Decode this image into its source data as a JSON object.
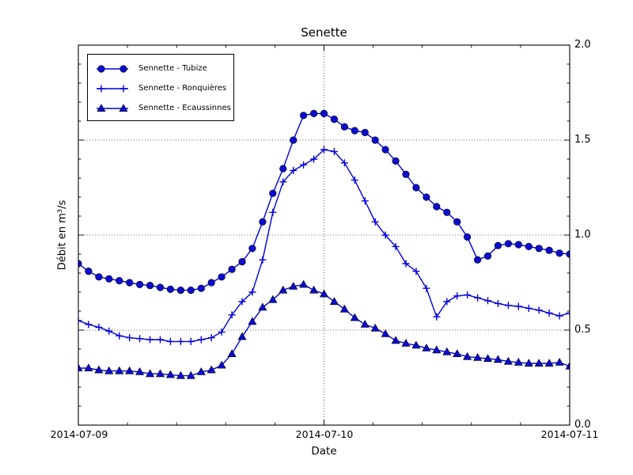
{
  "chart_data": {
    "type": "line",
    "title": "Senette",
    "xlabel": "Date",
    "ylabel": "Débit en m³/s",
    "x_tick_labels": [
      "2014-07-09",
      "2014-07-10",
      "2014-07-11"
    ],
    "x_unit": "hours from 2014-07-09 00:00",
    "xlim_hours": [
      0,
      48
    ],
    "x_major_hours": [
      0,
      24,
      48
    ],
    "x_minor_step_hours": 4.8,
    "ylim": [
      0.0,
      2.0
    ],
    "y_tick_labels": [
      "0.0",
      "0.5",
      "1.0",
      "1.5",
      "2.0"
    ],
    "y_major_ticks": [
      0.0,
      0.5,
      1.0,
      1.5,
      2.0
    ],
    "y_minor_step": 0.1,
    "grid": "dotted-major-only",
    "legend_position": "upper-left",
    "colors": {
      "line": "#0000dd",
      "marker_fill": "#0b0bd0",
      "marker_edge": "#000000",
      "grid": "#333333",
      "frame": "#000000",
      "background": "#ffffff"
    },
    "x_hours": [
      0,
      1,
      2,
      3,
      4,
      5,
      6,
      7,
      8,
      9,
      10,
      11,
      12,
      13,
      14,
      15,
      16,
      17,
      18,
      19,
      20,
      21,
      22,
      23,
      24,
      25,
      26,
      27,
      28,
      29,
      30,
      31,
      32,
      33,
      34,
      35,
      36,
      37,
      38,
      39,
      40,
      41,
      42,
      43,
      44,
      45,
      46,
      47,
      48
    ],
    "series": [
      {
        "name": "Sennette - Tubize",
        "marker": "circle",
        "values": [
          0.85,
          0.81,
          0.78,
          0.77,
          0.76,
          0.75,
          0.74,
          0.735,
          0.725,
          0.715,
          0.71,
          0.71,
          0.72,
          0.75,
          0.78,
          0.82,
          0.86,
          0.93,
          1.07,
          1.22,
          1.35,
          1.5,
          1.63,
          1.64,
          1.64,
          1.61,
          1.57,
          1.55,
          1.54,
          1.5,
          1.45,
          1.39,
          1.32,
          1.25,
          1.2,
          1.15,
          1.12,
          1.07,
          0.99,
          0.87,
          0.89,
          0.945,
          0.955,
          0.95,
          0.94,
          0.93,
          0.92,
          0.905,
          0.9
        ]
      },
      {
        "name": "Sennette - Ronquières",
        "marker": "plus",
        "values": [
          0.55,
          0.53,
          0.515,
          0.495,
          0.47,
          0.46,
          0.455,
          0.45,
          0.45,
          0.44,
          0.44,
          0.44,
          0.45,
          0.46,
          0.49,
          0.58,
          0.65,
          0.7,
          0.87,
          1.12,
          1.28,
          1.34,
          1.37,
          1.4,
          1.45,
          1.44,
          1.38,
          1.29,
          1.18,
          1.07,
          1.0,
          0.94,
          0.85,
          0.81,
          0.72,
          0.57,
          0.65,
          0.68,
          0.685,
          0.67,
          0.655,
          0.64,
          0.63,
          0.625,
          0.615,
          0.605,
          0.59,
          0.575,
          0.59
        ]
      },
      {
        "name": "Sennette - Ecaussinnes",
        "marker": "triangle",
        "values": [
          0.3,
          0.3,
          0.29,
          0.285,
          0.285,
          0.285,
          0.28,
          0.27,
          0.27,
          0.265,
          0.26,
          0.26,
          0.28,
          0.29,
          0.315,
          0.375,
          0.465,
          0.545,
          0.62,
          0.66,
          0.71,
          0.73,
          0.74,
          0.71,
          0.69,
          0.65,
          0.61,
          0.565,
          0.53,
          0.51,
          0.48,
          0.445,
          0.43,
          0.42,
          0.405,
          0.395,
          0.385,
          0.375,
          0.36,
          0.355,
          0.35,
          0.345,
          0.335,
          0.33,
          0.325,
          0.325,
          0.325,
          0.33,
          0.31
        ]
      }
    ]
  }
}
